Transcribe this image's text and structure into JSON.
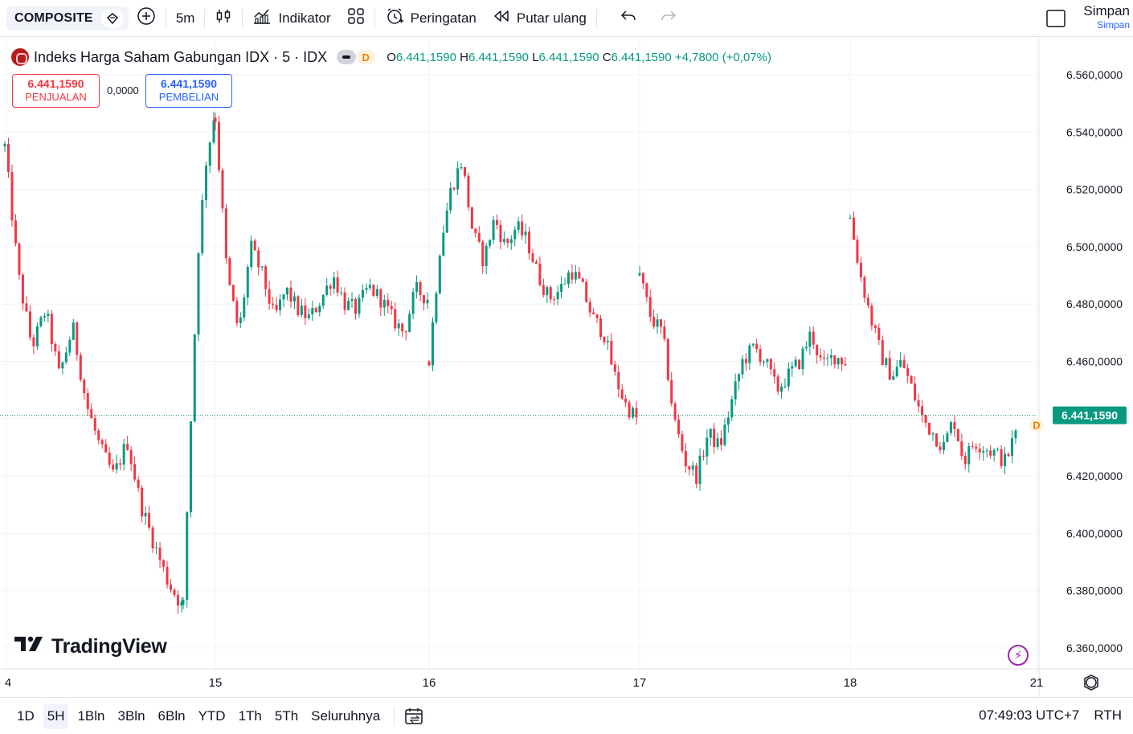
{
  "toolbar": {
    "symbol": "COMPOSITE",
    "interval": "5m",
    "indicators_label": "Indikator",
    "alerts_label": "Peringatan",
    "replay_label": "Putar ulang",
    "save_label": "Simpan",
    "save_sublabel": "Simpan"
  },
  "legend": {
    "title": "Indeks Harga Saham Gabungan IDX · 5 · IDX",
    "badge": "D",
    "o_label": "O",
    "o_value": "6.441,1590",
    "h_label": "H",
    "h_value": "6.441,1590",
    "l_label": "L",
    "l_value": "6.441,1590",
    "c_label": "C",
    "c_value": "6.441,1590",
    "change": "+4,7800 (+0,07%)"
  },
  "trade": {
    "sell_value": "6.441,1590",
    "sell_label": "PENJUALAN",
    "spread": "0,0000",
    "buy_value": "6.441,1590",
    "buy_label": "PEMBELIAN"
  },
  "logo_text": "TradingView",
  "bottom": {
    "ranges": [
      "1D",
      "5H",
      "1Bln",
      "3Bln",
      "6Bln",
      "YTD",
      "1Th",
      "5Th",
      "Seluruhnya"
    ],
    "active_range": "5H",
    "time": "07:49:03 UTC+7",
    "session": "RTH"
  },
  "colors": {
    "up": "#089981",
    "down": "#f23645",
    "grid": "#f0f3fa",
    "accent": "#2962ff"
  },
  "chart_data": {
    "type": "candlestick",
    "title": "Indeks Harga Saham Gabungan IDX · 5 · IDX",
    "interval": "5m",
    "y_ticks": [
      6360,
      6380,
      6400,
      6420,
      6440,
      6460,
      6480,
      6500,
      6520,
      6540,
      6560
    ],
    "y_tick_labels": [
      "6.360,0000",
      "6.380,0000",
      "6.400,0000",
      "6.420,0000",
      "6.440,0000",
      "6.460,0000",
      "6.480,0000",
      "6.500,0000",
      "6.520,0000",
      "6.540,0000",
      "6.560,0000"
    ],
    "ylim": [
      6350,
      6567
    ],
    "x_tick_labels": [
      "4",
      "15",
      "16",
      "17",
      "18",
      "21"
    ],
    "last_price": 6441.159,
    "last_price_label": "6.441,1590",
    "sessions": [
      {
        "day": "14",
        "path": [
          6535,
          6490,
          6465,
          6478,
          6455,
          6472,
          6445,
          6430,
          6420,
          6432,
          6410,
          6396,
          6383,
          6375
        ]
      },
      {
        "day": "14-close",
        "path": [
          6375,
          6440,
          6500,
          6530,
          6545
        ]
      },
      {
        "day": "15",
        "path": [
          6545,
          6490,
          6470,
          6500,
          6490,
          6475,
          6485,
          6478,
          6475,
          6482,
          6490,
          6480,
          6478,
          6486,
          6482,
          6475,
          6470,
          6485,
          6482
        ]
      },
      {
        "day": "16",
        "path": [
          6460,
          6500,
          6520,
          6530,
          6505,
          6495,
          6510,
          6500,
          6507,
          6502,
          6490,
          6482,
          6485,
          6492,
          6486,
          6475,
          6470,
          6455,
          6445,
          6440
        ]
      },
      {
        "day": "17",
        "path": [
          6490,
          6475,
          6470,
          6440,
          6425,
          6420,
          6435,
          6430,
          6445,
          6460,
          6465,
          6460,
          6450,
          6455,
          6460,
          6470,
          6458,
          6462,
          6460
        ]
      },
      {
        "day": "18",
        "path": [
          6510,
          6490,
          6475,
          6462,
          6455,
          6460,
          6450,
          6440,
          6435,
          6430,
          6440,
          6425,
          6432,
          6430,
          6428,
          6425,
          6435
        ]
      }
    ]
  }
}
